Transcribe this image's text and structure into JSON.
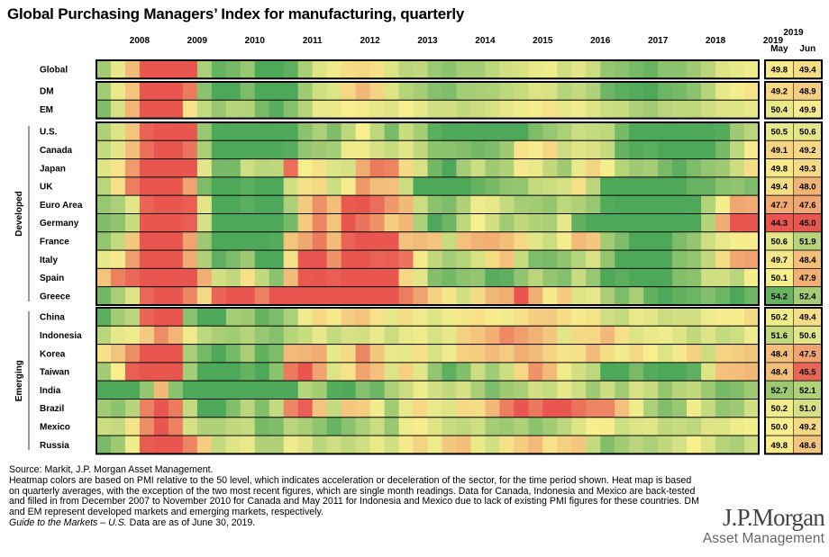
{
  "title": "Global Purchasing Managers’ Index for manufacturing, quarterly",
  "source": {
    "line1": "Source: Markit, J.P. Morgan Asset Management.",
    "line2": "Heatmap colors are based on PMI relative to the 50 level, which indicates acceleration or deceleration of the sector, for the time period shown. Heat map is based on quarterly averages, with the exception of the two most recent figures, which are single month readings. Data for Canada, Indonesia and Mexico are back-tested and filled in from December 2007 to November 2010 for Canada and May 2011 for Indonesia and Mexico due to lack of existing PMI figures for these countries. DM and EM represent developed markets and emerging markets, respectively.",
    "guide_italic": "Guide to the Markets – U.S.",
    "guide_rest": " Data are as of June 30, 2019."
  },
  "logo": {
    "brand": "J.P.Morgan",
    "sub": "Asset Management"
  },
  "chart_data": {
    "type": "heatmap",
    "x_labels": [
      "2008",
      "2009",
      "2010",
      "2011",
      "2012",
      "2013",
      "2014",
      "2015",
      "2016",
      "2017",
      "2018",
      "2019"
    ],
    "quarters_per_year": 4,
    "start_quarter": "2007 Q4",
    "total_quarters": 46,
    "color_scale": {
      "low": "#e8564f",
      "mid": "#f7ef8e",
      "high": "#4da85a",
      "center_value": 50
    },
    "recent_header": {
      "year": "2019",
      "months": [
        "May",
        "Jun"
      ]
    },
    "groups": [
      {
        "label": "",
        "rows": [
          "Global"
        ]
      },
      {
        "label": "",
        "rows": [
          "DM",
          "EM"
        ]
      },
      {
        "label": "Developed",
        "rows": [
          "U.S.",
          "Canada",
          "Japan",
          "UK",
          "Euro Area",
          "Germany",
          "France",
          "Italy",
          "Spain",
          "Greece"
        ]
      },
      {
        "label": "Emerging",
        "rows": [
          "China",
          "Indonesia",
          "Korea",
          "Taiwan",
          "India",
          "Brazil",
          "Mexico",
          "Russia"
        ]
      }
    ],
    "rows": [
      {
        "name": "Global",
        "values": [
          52.5,
          50.5,
          48.3,
          43,
          35.8,
          35.5,
          45,
          52.2,
          54.3,
          53.8,
          52.8,
          55.3,
          56.3,
          54.5,
          52.3,
          50.8,
          50.3,
          49.4,
          49.2,
          49.5,
          50.8,
          51.8,
          51.6,
          52.7,
          53.1,
          52.4,
          52.4,
          51.7,
          51.1,
          50.9,
          50.4,
          50.3,
          51.2,
          50.6,
          51.3,
          52.9,
          53.2,
          53.8,
          54.2,
          53.2,
          53.1,
          52.6,
          51.8,
          50.7,
          50.5,
          50.2
        ],
        "may": 49.8,
        "jun": 49.4
      },
      {
        "name": "DM",
        "values": [
          52.5,
          50.4,
          48.6,
          43.2,
          34.5,
          36.2,
          46.2,
          53.2,
          55.5,
          55.2,
          53.6,
          56.3,
          57.3,
          55.2,
          52.6,
          51.2,
          50.8,
          49.2,
          48.2,
          49.1,
          50.8,
          51.9,
          52.4,
          53.3,
          53.5,
          52.4,
          52.3,
          52.2,
          51.7,
          51.4,
          50.8,
          50.9,
          51.9,
          51.5,
          52.1,
          54,
          54.6,
          54.8,
          55.3,
          54.1,
          53.8,
          53.2,
          51.9,
          50.5,
          50.1,
          49.6
        ],
        "may": 49.2,
        "jun": 48.9
      },
      {
        "name": "EM",
        "values": [
          53.5,
          50.9,
          48.1,
          42.8,
          39.2,
          42.3,
          49.6,
          51.5,
          52.8,
          51.9,
          52,
          53.7,
          54.7,
          53.3,
          51.9,
          50.4,
          50.4,
          50,
          49.9,
          50.5,
          50.7,
          50,
          50.5,
          51.1,
          51.1,
          51.6,
          51.3,
          50.9,
          50.5,
          50.2,
          49.9,
          49.6,
          50.5,
          50.2,
          50.7,
          51.3,
          51.4,
          52.2,
          52.5,
          51.8,
          51.6,
          51.7,
          51.2,
          50.7,
          50.8,
          50.5
        ],
        "may": 50.4,
        "jun": 49.9
      },
      {
        "name": "U.S.",
        "values": [
          52.1,
          50.8,
          48.6,
          45.4,
          35.8,
          36.3,
          44.6,
          52.8,
          55.3,
          57.4,
          56.1,
          56.6,
          59.4,
          56.8,
          53.2,
          52.2,
          53.5,
          51.7,
          50,
          51.7,
          53.7,
          51.4,
          52.4,
          54.6,
          55.8,
          56.5,
          55.4,
          56.8,
          57.8,
          55,
          53.6,
          52.8,
          52.2,
          51.3,
          51.5,
          51.7,
          53.8,
          55.1,
          55.6,
          56.9,
          58,
          57,
          55.4,
          54.8,
          52.6,
          51.8
        ],
        "may": 50.5,
        "jun": 50.6
      },
      {
        "name": "Canada",
        "values": [
          51.5,
          50.6,
          48.4,
          45.8,
          38.5,
          38.2,
          46,
          52.3,
          55.1,
          56.4,
          55.9,
          55.8,
          56.6,
          54.7,
          52.9,
          52.6,
          52.4,
          50.3,
          50.2,
          51,
          51.4,
          50.6,
          51.6,
          53.1,
          53.2,
          53.4,
          53.9,
          53.5,
          52.6,
          49.6,
          49.9,
          49.2,
          51.3,
          50.7,
          50.9,
          51.5,
          54.3,
          54.8,
          54.6,
          55.4,
          55.7,
          57.2,
          56.2,
          53.8,
          51.7,
          49.9
        ],
        "may": 49.1,
        "jun": 49.2
      },
      {
        "name": "Japan",
        "values": [
          50.8,
          49.6,
          47.3,
          44.7,
          30.6,
          32.8,
          44.1,
          50.6,
          53.8,
          53.8,
          51.2,
          51.8,
          51.7,
          45.8,
          50,
          49.5,
          50.8,
          51,
          47.8,
          46.2,
          46.5,
          49.3,
          50.9,
          53.9,
          55.1,
          52.4,
          51.3,
          52.6,
          52.1,
          49.8,
          50.4,
          51.6,
          52.6,
          50.4,
          49.1,
          50.1,
          51.9,
          52.6,
          52.4,
          53.7,
          54.6,
          53.6,
          52.9,
          52.6,
          51.3,
          49.4
        ],
        "may": 49.8,
        "jun": 49.3
      },
      {
        "name": "UK",
        "values": [
          51.8,
          49.5,
          46.3,
          41.3,
          35.4,
          35.6,
          47.5,
          53.6,
          56.7,
          57.6,
          54.6,
          57.3,
          55.6,
          51.1,
          49.5,
          49.3,
          51.3,
          49.9,
          47.2,
          48.4,
          48.5,
          51.3,
          56.3,
          58.2,
          56.6,
          56.2,
          54.3,
          53.8,
          53,
          52.9,
          51.5,
          51.3,
          51,
          49.5,
          51.8,
          55.7,
          55.9,
          55.8,
          55.4,
          56.5,
          55.2,
          54.2,
          54.2,
          53.2,
          53,
          53.5
        ],
        "may": 49.4,
        "jun": 48
      },
      {
        "name": "Euro Area",
        "values": [
          52.8,
          52.2,
          50.6,
          45.5,
          35.5,
          35,
          45.3,
          50.6,
          56.4,
          56.1,
          54.6,
          57.6,
          57.5,
          52.2,
          48.8,
          46.9,
          48.4,
          45.1,
          44.5,
          45.8,
          47.2,
          48.2,
          51.3,
          53.1,
          53.5,
          52.1,
          50.3,
          50.5,
          51.5,
          52.4,
          52.5,
          52.9,
          51.7,
          52.1,
          52.8,
          54.8,
          56.1,
          57.3,
          58.7,
          58.8,
          56.2,
          54.9,
          52,
          50.1,
          47.6,
          47.8
        ],
        "may": 47.7,
        "jun": 47.6
      },
      {
        "name": "Germany",
        "values": [
          53.5,
          53,
          51.4,
          43.5,
          32,
          33.3,
          45.3,
          51,
          59,
          61.3,
          58.1,
          61.4,
          61.7,
          53.8,
          48.8,
          46.5,
          48.6,
          44.6,
          46,
          47,
          48.9,
          48.2,
          52.2,
          56,
          54,
          51.7,
          50,
          51.1,
          52.5,
          51.6,
          52.1,
          52.3,
          50.5,
          54.4,
          55.3,
          57.4,
          58.3,
          59.6,
          62,
          61.2,
          58.6,
          55.3,
          52,
          47.8,
          44.3,
          43.7
        ],
        "may": 44.3,
        "jun": 45
      },
      {
        "name": "France",
        "values": [
          52.9,
          51.5,
          48.7,
          42.1,
          37,
          38.5,
          47.5,
          52.7,
          56.7,
          56,
          54.9,
          56.4,
          54.8,
          48.6,
          47.7,
          46.2,
          48.3,
          45.4,
          43.5,
          44.6,
          44.3,
          48.5,
          48.3,
          48.6,
          51.4,
          48.5,
          48,
          47.9,
          48.4,
          49.2,
          50.6,
          51.3,
          49.9,
          48.3,
          48.7,
          52.5,
          53.6,
          55.1,
          56.4,
          57.8,
          53.6,
          52.9,
          51.2,
          50.4,
          50.1,
          49.9
        ],
        "may": 50.6,
        "jun": 51.9
      },
      {
        "name": "Italy",
        "values": [
          50.5,
          49.8,
          47.4,
          40.8,
          35.3,
          37.3,
          47.8,
          52.1,
          54.5,
          53.6,
          52.6,
          56.6,
          56.8,
          49.5,
          45,
          44.6,
          47,
          44.6,
          44.5,
          45.4,
          45.3,
          46,
          49.8,
          51.6,
          52.4,
          51.9,
          50.9,
          49.4,
          48.5,
          51.4,
          53.5,
          53.7,
          53,
          51.9,
          50.9,
          52.9,
          55.8,
          55.6,
          56.4,
          57.2,
          53.3,
          52.9,
          51.6,
          49.4,
          47.7,
          47.5
        ],
        "may": 49.7,
        "jun": 48.4
      },
      {
        "name": "Spain",
        "values": [
          48.6,
          46.4,
          45.6,
          37.8,
          32.8,
          34.6,
          43.4,
          47.9,
          51.1,
          51.6,
          49.5,
          51.6,
          53.2,
          48.3,
          45.1,
          44.2,
          45.3,
          42.9,
          44.6,
          44.3,
          44.2,
          49.2,
          50.6,
          53.4,
          53.9,
          53.1,
          52.9,
          54.7,
          54.5,
          53,
          51.8,
          52.9,
          53.3,
          51.4,
          52.8,
          55.6,
          54.6,
          55.3,
          55.4,
          56.7,
          53.4,
          53.2,
          51.2,
          51.1,
          51.8,
          50.1
        ],
        "may": 50.1,
        "jun": 47.9
      },
      {
        "name": "Greece",
        "values": [
          53.9,
          52.3,
          50.8,
          45.6,
          37.9,
          38.9,
          46.6,
          49.3,
          45.5,
          44.3,
          43.6,
          46.4,
          44.2,
          42.1,
          41.7,
          43.3,
          40.6,
          42.5,
          42.1,
          41.3,
          42.8,
          46.3,
          47.5,
          49,
          49.7,
          51.1,
          49.3,
          48.2,
          47.9,
          43.3,
          47.9,
          49.8,
          48.8,
          50.7,
          50.5,
          52.3,
          53.6,
          52.3,
          54.4,
          55,
          54.4,
          54.1,
          53.4,
          54.1,
          55.2,
          54.1
        ],
        "may": 54.2,
        "jun": 52.4
      },
      {
        "name": "China",
        "values": [
          54.6,
          52.5,
          51.8,
          45.5,
          39.4,
          43.2,
          53.2,
          55.4,
          55.1,
          52.4,
          52.6,
          54.3,
          53.6,
          52.2,
          50.2,
          49.2,
          49.8,
          48.9,
          48.6,
          49.6,
          50.5,
          49.4,
          50.3,
          50.8,
          50.2,
          49.7,
          49.5,
          49.9,
          50.2,
          49.5,
          48.9,
          48.8,
          49.4,
          49.8,
          49.6,
          51.2,
          51.5,
          50.4,
          50.6,
          51.3,
          51.1,
          51.1,
          50.3,
          49.9,
          50.1,
          49.3
        ],
        "may": 50.2,
        "jun": 49.4
      },
      {
        "name": "Indonesia",
        "values": [
          51.8,
          50.5,
          50.3,
          48.8,
          46.8,
          48.1,
          50.3,
          51.7,
          52.3,
          52.5,
          51.9,
          52.8,
          53.3,
          51.9,
          51.4,
          50.5,
          51.5,
          50.9,
          51.1,
          50.4,
          51.3,
          50.4,
          50.2,
          50.9,
          50.5,
          49,
          48.6,
          47.9,
          46.7,
          47.4,
          48,
          48.7,
          50.6,
          49.3,
          49.2,
          48.2,
          49.5,
          50.8,
          50.4,
          50.3,
          50.7,
          51.6,
          50.8,
          51.5,
          51.2,
          50.3
        ],
        "may": 51.6,
        "jun": 50.6
      },
      {
        "name": "Korea",
        "values": [
          49.5,
          48.6,
          46.8,
          39.1,
          34.2,
          38.3,
          52.3,
          53.8,
          55.4,
          53.8,
          52.3,
          54.4,
          53.5,
          48.3,
          48.1,
          47.8,
          50.5,
          49.3,
          46.6,
          48.7,
          50.4,
          50.5,
          49.5,
          50.9,
          50.3,
          49,
          48.9,
          48.3,
          48.9,
          47.9,
          48.3,
          49.1,
          49.6,
          49.5,
          48.3,
          49.4,
          50.2,
          49.3,
          50,
          50.8,
          49.8,
          49,
          51.3,
          49.1,
          48.9,
          48.6
        ],
        "may": 48.4,
        "jun": 47.5
      },
      {
        "name": "Taiwan",
        "values": [
          52.5,
          50,
          45.3,
          37.5,
          32.1,
          39.5,
          52.4,
          56.8,
          57.5,
          56.8,
          54.3,
          56.1,
          53.2,
          46.2,
          44.4,
          47.5,
          50.8,
          49.6,
          47.5,
          48.5,
          50.8,
          49,
          50.6,
          52.9,
          54.5,
          53.4,
          51.3,
          52.5,
          51.3,
          49.2,
          47,
          48.3,
          50.2,
          51.1,
          51.7,
          55.1,
          56.3,
          53.7,
          54.8,
          56.3,
          56.3,
          54.5,
          50.8,
          48.5,
          48.4,
          48.2
        ],
        "may": 48.4,
        "jun": 45.5
      },
      {
        "name": "India",
        "values": [
          56,
          57.2,
          55.2,
          52.9,
          48.2,
          53.2,
          56.2,
          57.8,
          58.2,
          57,
          55.8,
          57.5,
          57.8,
          55.4,
          51.9,
          52.5,
          54.8,
          54.9,
          53.3,
          54.1,
          52.2,
          51.3,
          50.3,
          51.1,
          51.6,
          51,
          52.3,
          53.6,
          52.6,
          52.3,
          51.1,
          51.4,
          50.5,
          51.2,
          52.6,
          51.3,
          52.5,
          50.9,
          51.4,
          52.9,
          51.9,
          51.6,
          52.7,
          53.8,
          53.4,
          52.6
        ],
        "may": 52.7,
        "jun": 52.1
      },
      {
        "name": "Brazil",
        "values": [
          52.5,
          53.1,
          51.9,
          46.4,
          41.9,
          46.2,
          51.5,
          55.7,
          56.8,
          53.4,
          51.8,
          53.4,
          51.5,
          46.6,
          45.3,
          48.6,
          51.5,
          48.7,
          48.9,
          50.2,
          52.5,
          50.4,
          49.2,
          50.4,
          50.8,
          49.2,
          49.4,
          48.2,
          46.3,
          44.2,
          46.1,
          44.4,
          43.3,
          45.9,
          46.5,
          46.5,
          48.5,
          50.2,
          52.2,
          53.4,
          52.8,
          50.3,
          51.5,
          52.9,
          52.6,
          51.1
        ],
        "may": 50.2,
        "jun": 51
      },
      {
        "name": "Mexico",
        "values": [
          51.3,
          51.5,
          49.6,
          46.8,
          44.4,
          46.4,
          51,
          52.1,
          52.1,
          51.6,
          51.4,
          53.8,
          53.5,
          51.8,
          52.3,
          53,
          54.2,
          53.2,
          52.2,
          51.3,
          52.8,
          50.3,
          49.9,
          50.7,
          51.4,
          51.6,
          51.2,
          52.4,
          52.6,
          52.1,
          53.1,
          52.5,
          51.7,
          50.8,
          50,
          49.9,
          51.2,
          50.8,
          50.6,
          51.6,
          51.4,
          51.7,
          50.7,
          50.8,
          50.3,
          50.1
        ],
        "may": 50,
        "jun": 49.2
      },
      {
        "name": "Russia",
        "values": [
          53.7,
          52.6,
          50.2,
          45.2,
          39.5,
          43.9,
          46.5,
          48.9,
          51.5,
          50.7,
          50.4,
          52.1,
          52.1,
          50.2,
          50.7,
          51.8,
          51.2,
          51.6,
          51.2,
          50.4,
          51.1,
          49.8,
          49.1,
          50.3,
          48.7,
          48.4,
          50.4,
          51.1,
          49.5,
          48.9,
          48.3,
          49.6,
          49,
          48.7,
          51.5,
          53.4,
          52.5,
          51.8,
          52.2,
          51.6,
          51,
          50,
          50.8,
          51.9,
          52.3,
          51.2
        ],
        "may": 49.8,
        "jun": 48.6
      }
    ]
  }
}
